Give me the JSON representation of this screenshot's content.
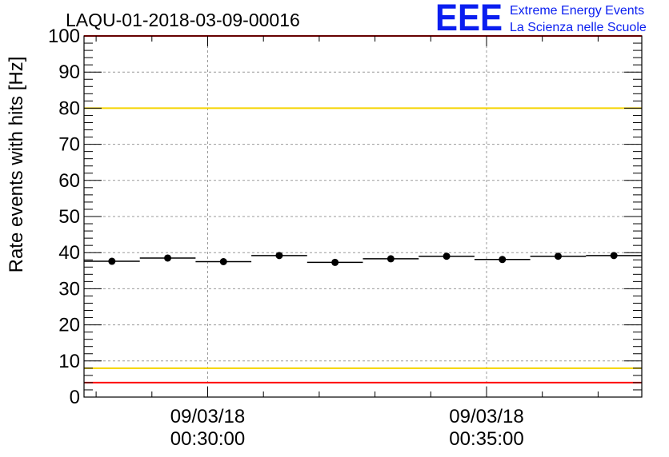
{
  "chart_data": {
    "type": "scatter",
    "title": "LAQU-01-2018-03-09-00016",
    "ylabel": "Rate events with hits [Hz]",
    "xlabel": "",
    "ylim": [
      0,
      100
    ],
    "yticks": [
      "0",
      "10",
      "20",
      "30",
      "40",
      "50",
      "60",
      "70",
      "80",
      "90",
      "100"
    ],
    "xlim": [
      "2018-03-09 00:27:47",
      "2018-03-09 00:37:47"
    ],
    "xticks": [
      {
        "time": "2018-03-09 00:30:00",
        "date_label": "09/03/18",
        "time_label": "00:30:00"
      },
      {
        "time": "2018-03-09 00:35:00",
        "date_label": "09/03/18",
        "time_label": "00:35:00"
      }
    ],
    "grid": true,
    "bin_width_seconds": 60,
    "series": [
      {
        "x": [
          "2018-03-09 00:28:17",
          "2018-03-09 00:29:17",
          "2018-03-09 00:30:17",
          "2018-03-09 00:31:17",
          "2018-03-09 00:32:17",
          "2018-03-09 00:33:17",
          "2018-03-09 00:34:17",
          "2018-03-09 00:35:17",
          "2018-03-09 00:36:17",
          "2018-03-09 00:37:17"
        ],
        "values": [
          37.6,
          38.5,
          37.5,
          39.2,
          37.3,
          38.3,
          39.0,
          38.1,
          39.0,
          39.2
        ]
      }
    ],
    "reference_lines": [
      {
        "y": 100,
        "color": "#ff0000"
      },
      {
        "y": 80,
        "color": "#f5d400"
      },
      {
        "y": 8,
        "color": "#f5d400"
      },
      {
        "y": 4,
        "color": "#ff0000"
      }
    ]
  },
  "logo": {
    "mark": "EEE",
    "line1": "Extreme Energy Events",
    "line2": "La Scienza nelle Scuole",
    "color": "#0a1ef0"
  }
}
